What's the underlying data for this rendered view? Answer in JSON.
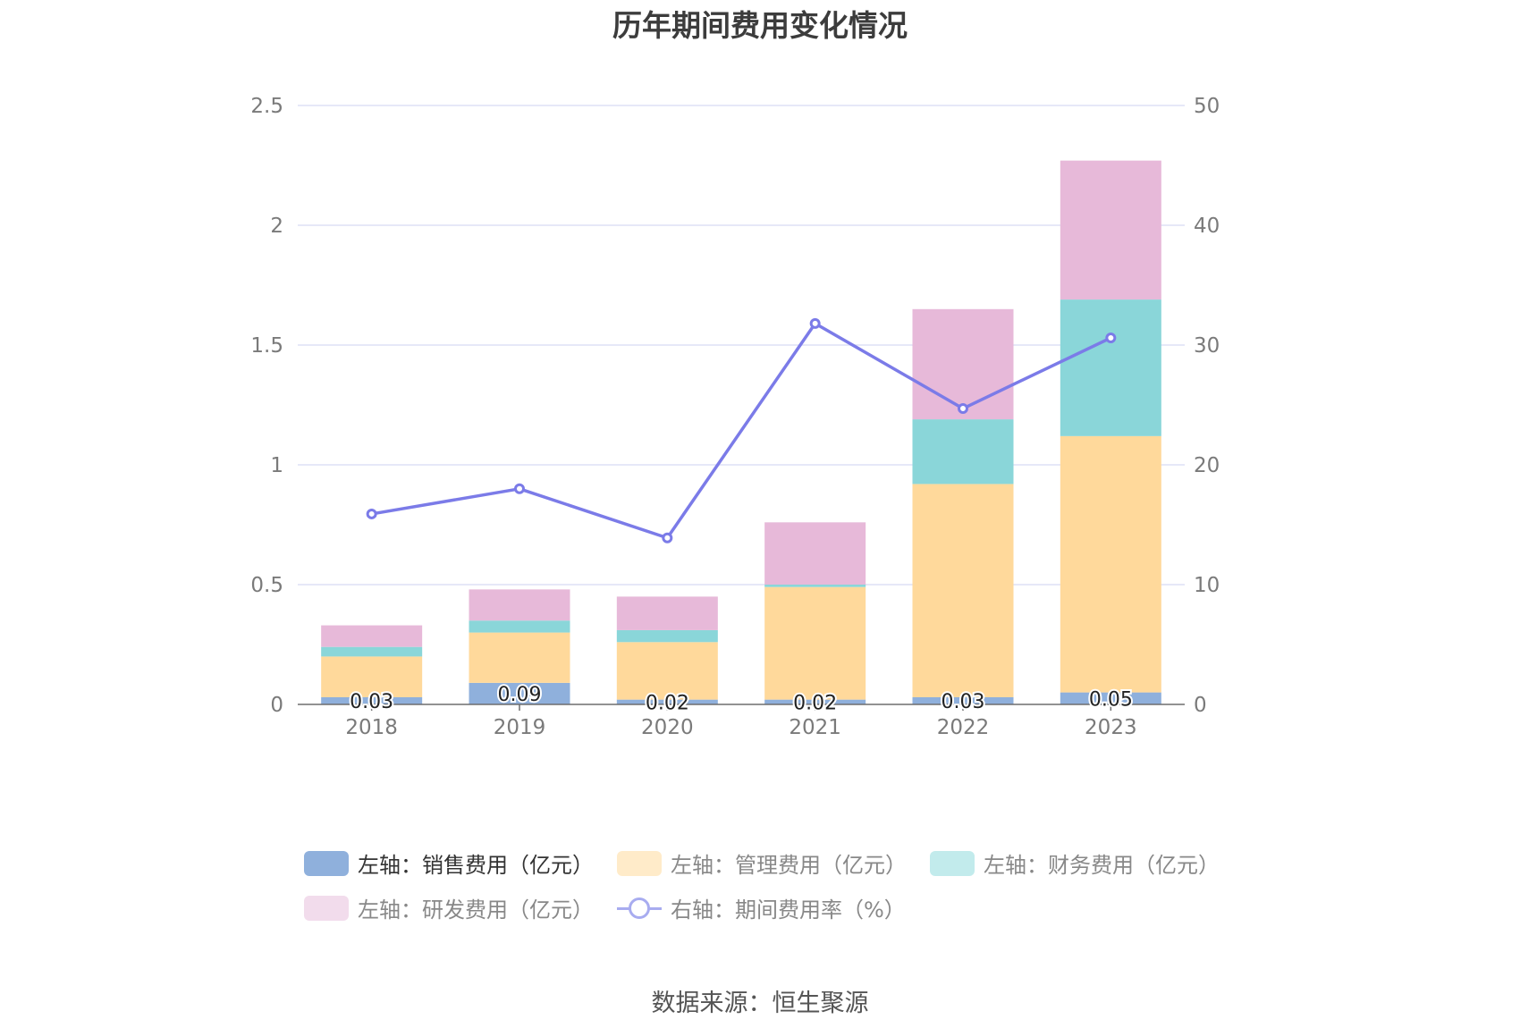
{
  "chart_data": {
    "type": "bar",
    "stacked": true,
    "title": "历年期间费用变化情况",
    "categories": [
      "2018",
      "2019",
      "2020",
      "2021",
      "2022",
      "2023"
    ],
    "left_axis": {
      "min": 0,
      "max": 2.5,
      "ticks": [
        "0",
        "0.5",
        "1",
        "1.5",
        "2",
        "2.5"
      ]
    },
    "right_axis": {
      "min": 0,
      "max": 50,
      "ticks": [
        "0",
        "10",
        "20",
        "30",
        "40",
        "50"
      ]
    },
    "series": [
      {
        "name": "左轴：销售费用（亿元）",
        "axis": "left",
        "color": "#8fb0dc",
        "values": [
          0.03,
          0.09,
          0.02,
          0.02,
          0.03,
          0.05
        ],
        "labels": [
          "0.03",
          "0.09",
          "0.02",
          "0.02",
          "0.03",
          "0.05"
        ]
      },
      {
        "name": "左轴：管理费用（亿元）",
        "axis": "left",
        "color": "#ffd99b",
        "values": [
          0.17,
          0.21,
          0.24,
          0.47,
          0.89,
          1.07
        ]
      },
      {
        "name": "左轴：财务费用（亿元）",
        "axis": "left",
        "color": "#8ad6d9",
        "values": [
          0.04,
          0.05,
          0.05,
          0.01,
          0.27,
          0.57
        ]
      },
      {
        "name": "左轴：研发费用（亿元）",
        "axis": "left",
        "color": "#e7b9d9",
        "values": [
          0.09,
          0.13,
          0.14,
          0.26,
          0.46,
          0.58
        ]
      },
      {
        "name": "右轴：期间费用率（%）",
        "axis": "right",
        "type": "line",
        "color": "#7b7be8",
        "values": [
          15.9,
          18.0,
          13.9,
          31.8,
          24.7,
          30.6
        ]
      }
    ],
    "legend_position": "bottom"
  },
  "legend": {
    "items": [
      {
        "label": "左轴：销售费用（亿元）",
        "color": "#8fb0dc"
      },
      {
        "label": "左轴：管理费用（亿元）",
        "color": "#ffebc9"
      },
      {
        "label": "左轴：财务费用（亿元）",
        "color": "#c2ebec"
      },
      {
        "label": "左轴：研发费用（亿元）",
        "color": "#f2dcec"
      },
      {
        "label": "右轴：期间费用率（%）",
        "color": "#a8acf0"
      }
    ]
  },
  "source": "数据来源：恒生聚源"
}
